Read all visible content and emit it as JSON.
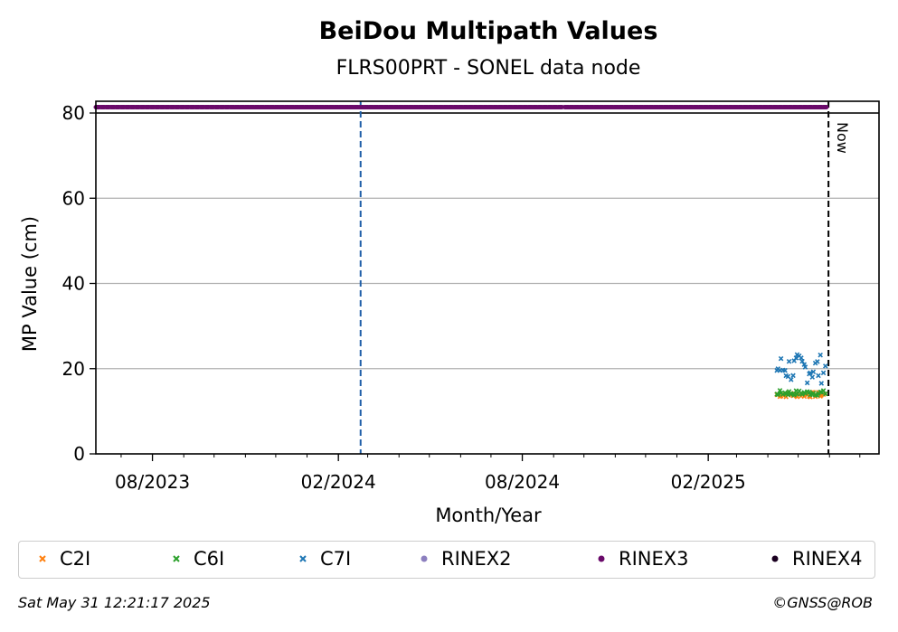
{
  "chart_data": {
    "type": "scatter",
    "title": "BeiDou Multipath Values",
    "subtitle": "FLRS00PRT - SONEL data node",
    "xlabel": "Month/Year",
    "ylabel": "MP Value (cm)",
    "x_range": [
      "2023-06-06",
      "2025-07-20"
    ],
    "y_range": [
      0,
      80
    ],
    "y_ticks": [
      0,
      20,
      40,
      60,
      80
    ],
    "x_ticks": [
      {
        "date": "2023-08-01",
        "label": "08/2023"
      },
      {
        "date": "2024-02-01",
        "label": "02/2024"
      },
      {
        "date": "2024-08-01",
        "label": "08/2024"
      },
      {
        "date": "2025-02-01",
        "label": "02/2025"
      }
    ],
    "grid": "horizontal",
    "vline_event": "2024-02-23",
    "now_date": "2025-05-31",
    "now_label": "Now",
    "rinex_band": {
      "series": "RINEX3",
      "segments": [
        [
          "2023-06-06",
          "2024-09-10"
        ],
        [
          "2024-09-12",
          "2025-05-29"
        ]
      ]
    },
    "series": [
      {
        "name": "C2I",
        "color": "#ff7f0e",
        "marker": "x",
        "start": "2025-04-10",
        "end": "2025-05-29",
        "center": 13.9,
        "spread": 0.6
      },
      {
        "name": "C6I",
        "color": "#2ca02c",
        "marker": "x",
        "start": "2025-04-10",
        "end": "2025-05-29",
        "center": 14.3,
        "spread": 0.6
      },
      {
        "name": "C7I",
        "color": "#1f77b4",
        "marker": "x",
        "start": "2025-04-10",
        "end": "2025-05-29",
        "center": 20.0,
        "spread": 3.5
      }
    ],
    "legend": [
      {
        "name": "C2I",
        "color": "#ff7f0e",
        "marker": "x"
      },
      {
        "name": "C6I",
        "color": "#2ca02c",
        "marker": "x"
      },
      {
        "name": "C7I",
        "color": "#1f77b4",
        "marker": "x"
      },
      {
        "name": "RINEX2",
        "color": "#8c7fbf",
        "marker": "dot"
      },
      {
        "name": "RINEX3",
        "color": "#6a0a6a",
        "marker": "dot"
      },
      {
        "name": "RINEX4",
        "color": "#1a0020",
        "marker": "dot"
      }
    ],
    "legend_position": "below"
  },
  "footer": {
    "timestamp": "Sat May 31 12:21:17 2025",
    "copyright": "©GNSS@ROB"
  }
}
